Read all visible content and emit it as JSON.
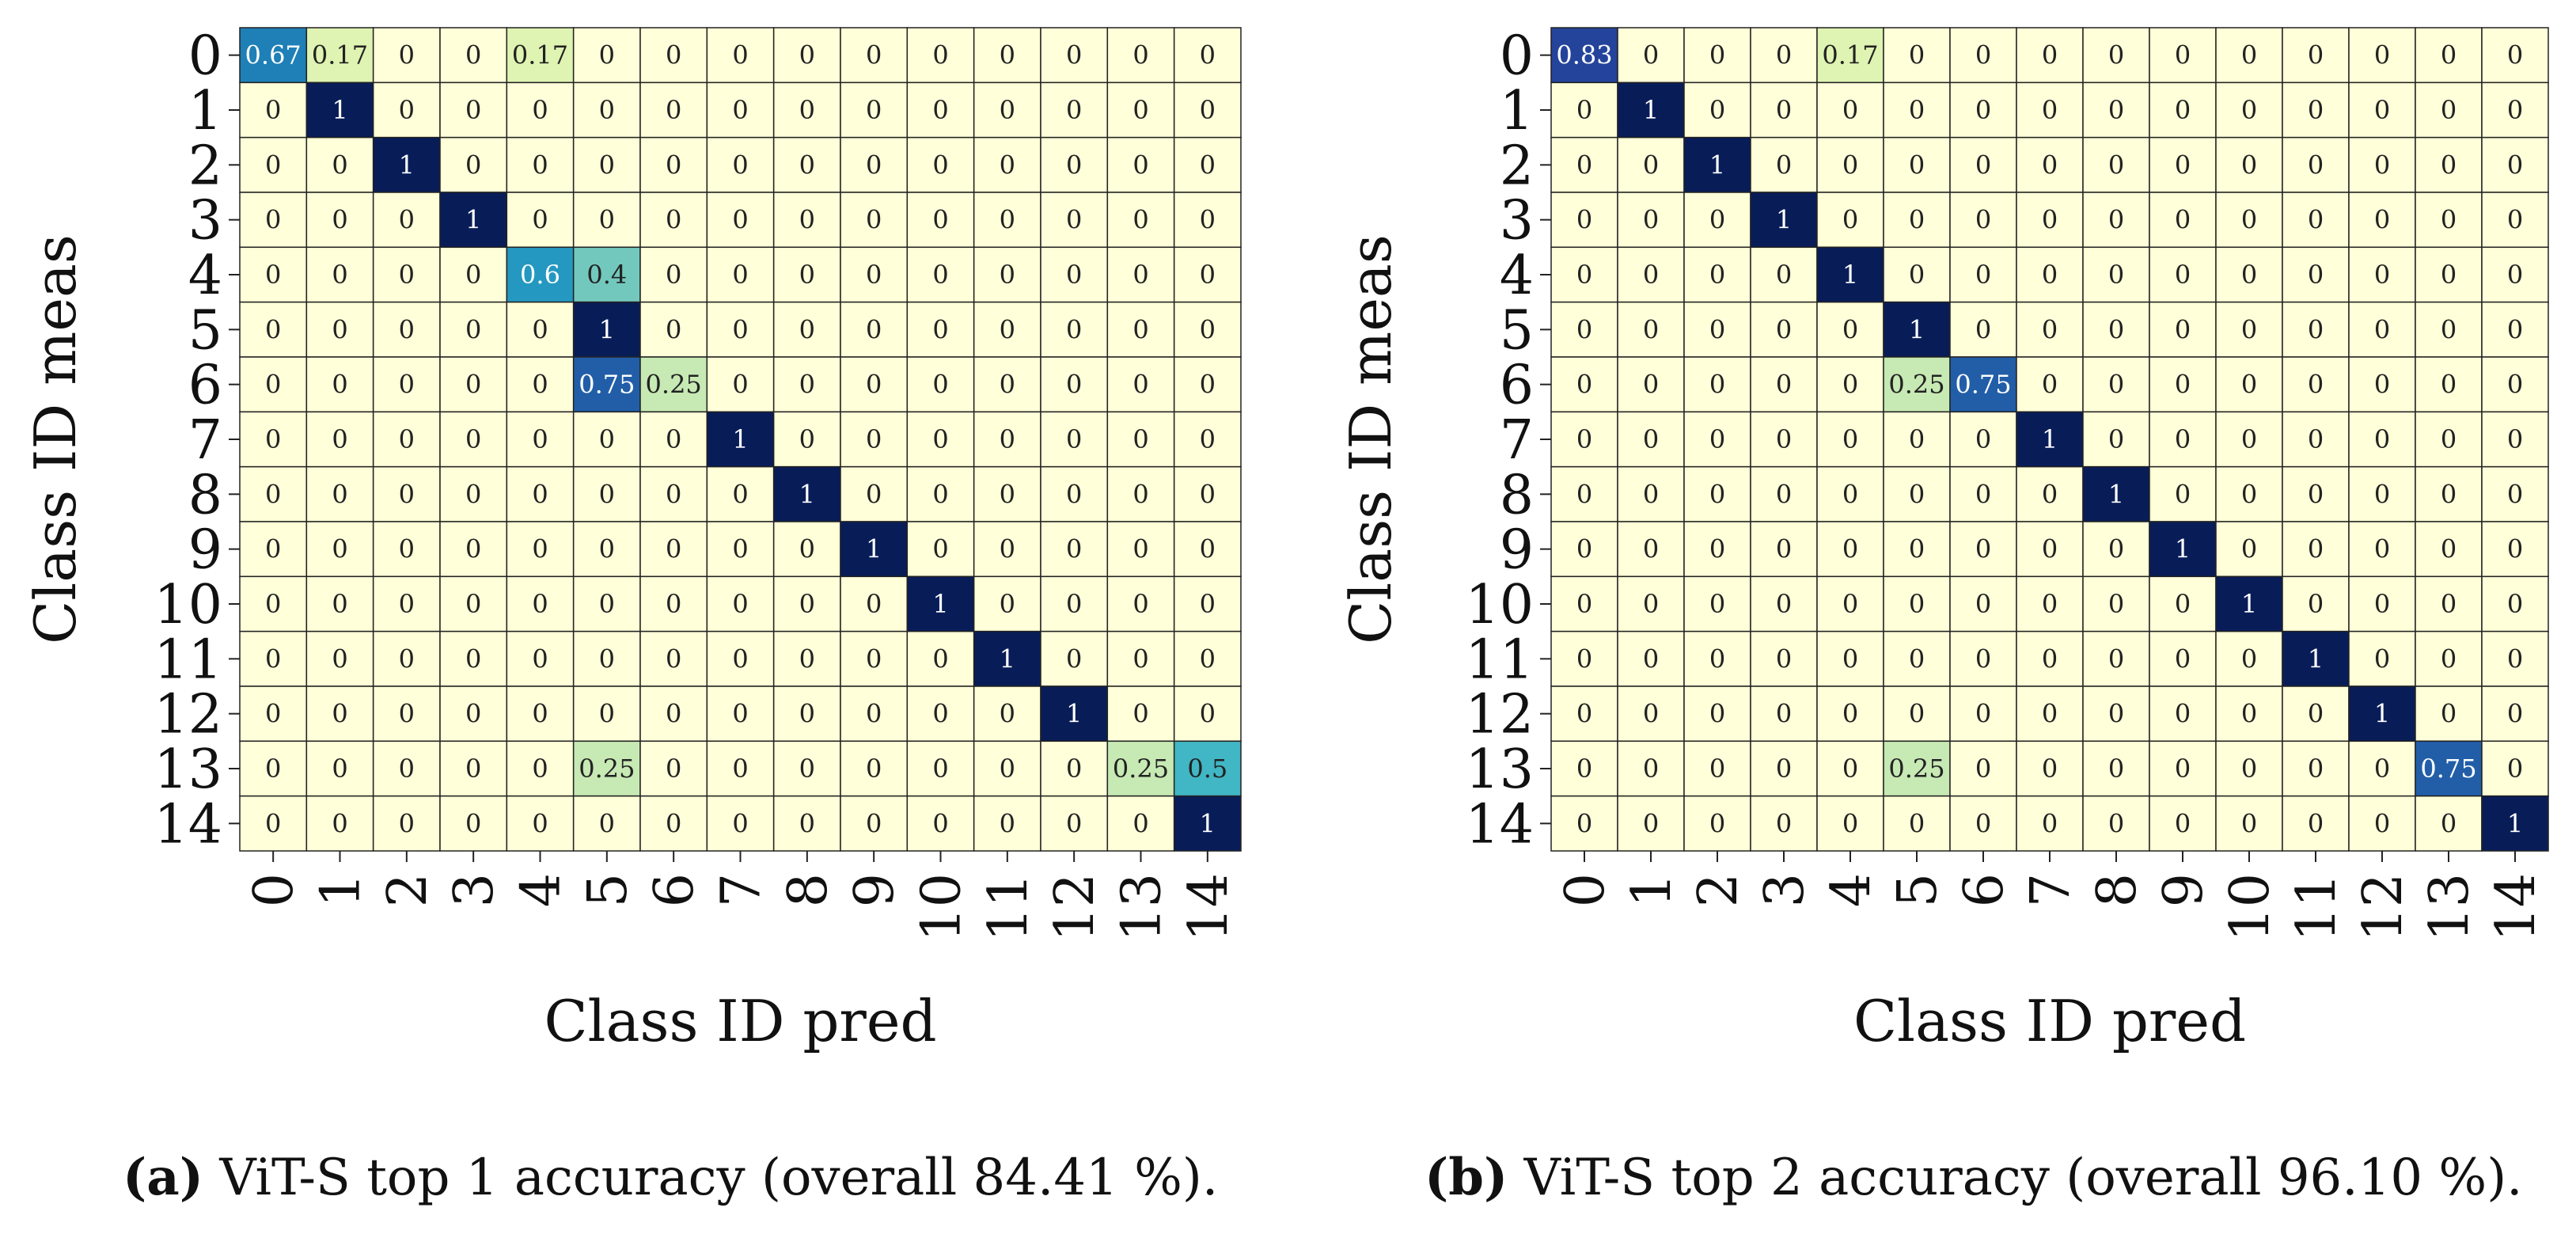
{
  "chart_data": [
    {
      "type": "heatmap",
      "panel_id": "a",
      "xlabel": "Class ID pred",
      "ylabel": "Class ID meas",
      "x_ticks": [
        "0",
        "1",
        "2",
        "3",
        "4",
        "5",
        "6",
        "7",
        "8",
        "9",
        "10",
        "11",
        "12",
        "13",
        "14"
      ],
      "y_ticks": [
        "0",
        "1",
        "2",
        "3",
        "4",
        "5",
        "6",
        "7",
        "8",
        "9",
        "10",
        "11",
        "12",
        "13",
        "14"
      ],
      "color_range": [
        0,
        1
      ],
      "colormap": "YlGnBu",
      "matrix": [
        [
          0.67,
          0.17,
          0,
          0,
          0.17,
          0,
          0,
          0,
          0,
          0,
          0,
          0,
          0,
          0,
          0
        ],
        [
          0,
          1,
          0,
          0,
          0,
          0,
          0,
          0,
          0,
          0,
          0,
          0,
          0,
          0,
          0
        ],
        [
          0,
          0,
          1,
          0,
          0,
          0,
          0,
          0,
          0,
          0,
          0,
          0,
          0,
          0,
          0
        ],
        [
          0,
          0,
          0,
          1,
          0,
          0,
          0,
          0,
          0,
          0,
          0,
          0,
          0,
          0,
          0
        ],
        [
          0,
          0,
          0,
          0,
          0.6,
          0.4,
          0,
          0,
          0,
          0,
          0,
          0,
          0,
          0,
          0
        ],
        [
          0,
          0,
          0,
          0,
          0,
          1,
          0,
          0,
          0,
          0,
          0,
          0,
          0,
          0,
          0
        ],
        [
          0,
          0,
          0,
          0,
          0,
          0.75,
          0.25,
          0,
          0,
          0,
          0,
          0,
          0,
          0,
          0
        ],
        [
          0,
          0,
          0,
          0,
          0,
          0,
          0,
          1,
          0,
          0,
          0,
          0,
          0,
          0,
          0
        ],
        [
          0,
          0,
          0,
          0,
          0,
          0,
          0,
          0,
          1,
          0,
          0,
          0,
          0,
          0,
          0
        ],
        [
          0,
          0,
          0,
          0,
          0,
          0,
          0,
          0,
          0,
          1,
          0,
          0,
          0,
          0,
          0
        ],
        [
          0,
          0,
          0,
          0,
          0,
          0,
          0,
          0,
          0,
          0,
          1,
          0,
          0,
          0,
          0
        ],
        [
          0,
          0,
          0,
          0,
          0,
          0,
          0,
          0,
          0,
          0,
          0,
          1,
          0,
          0,
          0
        ],
        [
          0,
          0,
          0,
          0,
          0,
          0,
          0,
          0,
          0,
          0,
          0,
          0,
          1,
          0,
          0
        ],
        [
          0,
          0,
          0,
          0,
          0,
          0.25,
          0,
          0,
          0,
          0,
          0,
          0,
          0,
          0.25,
          0.5
        ],
        [
          0,
          0,
          0,
          0,
          0,
          0,
          0,
          0,
          0,
          0,
          0,
          0,
          0,
          0,
          1
        ]
      ],
      "caption_label": "(a)",
      "caption_text": " ViT-S top 1 accuracy (overall 84.41 %)."
    },
    {
      "type": "heatmap",
      "panel_id": "b",
      "xlabel": "Class ID pred",
      "ylabel": "Class ID meas",
      "x_ticks": [
        "0",
        "1",
        "2",
        "3",
        "4",
        "5",
        "6",
        "7",
        "8",
        "9",
        "10",
        "11",
        "12",
        "13",
        "14"
      ],
      "y_ticks": [
        "0",
        "1",
        "2",
        "3",
        "4",
        "5",
        "6",
        "7",
        "8",
        "9",
        "10",
        "11",
        "12",
        "13",
        "14"
      ],
      "color_range": [
        0,
        1
      ],
      "colormap": "YlGnBu",
      "matrix": [
        [
          0.83,
          0,
          0,
          0,
          0.17,
          0,
          0,
          0,
          0,
          0,
          0,
          0,
          0,
          0,
          0
        ],
        [
          0,
          1,
          0,
          0,
          0,
          0,
          0,
          0,
          0,
          0,
          0,
          0,
          0,
          0,
          0
        ],
        [
          0,
          0,
          1,
          0,
          0,
          0,
          0,
          0,
          0,
          0,
          0,
          0,
          0,
          0,
          0
        ],
        [
          0,
          0,
          0,
          1,
          0,
          0,
          0,
          0,
          0,
          0,
          0,
          0,
          0,
          0,
          0
        ],
        [
          0,
          0,
          0,
          0,
          1,
          0,
          0,
          0,
          0,
          0,
          0,
          0,
          0,
          0,
          0
        ],
        [
          0,
          0,
          0,
          0,
          0,
          1,
          0,
          0,
          0,
          0,
          0,
          0,
          0,
          0,
          0
        ],
        [
          0,
          0,
          0,
          0,
          0,
          0.25,
          0.75,
          0,
          0,
          0,
          0,
          0,
          0,
          0,
          0
        ],
        [
          0,
          0,
          0,
          0,
          0,
          0,
          0,
          1,
          0,
          0,
          0,
          0,
          0,
          0,
          0
        ],
        [
          0,
          0,
          0,
          0,
          0,
          0,
          0,
          0,
          1,
          0,
          0,
          0,
          0,
          0,
          0
        ],
        [
          0,
          0,
          0,
          0,
          0,
          0,
          0,
          0,
          0,
          1,
          0,
          0,
          0,
          0,
          0
        ],
        [
          0,
          0,
          0,
          0,
          0,
          0,
          0,
          0,
          0,
          0,
          1,
          0,
          0,
          0,
          0
        ],
        [
          0,
          0,
          0,
          0,
          0,
          0,
          0,
          0,
          0,
          0,
          0,
          1,
          0,
          0,
          0
        ],
        [
          0,
          0,
          0,
          0,
          0,
          0,
          0,
          0,
          0,
          0,
          0,
          0,
          1,
          0,
          0
        ],
        [
          0,
          0,
          0,
          0,
          0,
          0.25,
          0,
          0,
          0,
          0,
          0,
          0,
          0,
          0.75,
          0
        ],
        [
          0,
          0,
          0,
          0,
          0,
          0,
          0,
          0,
          0,
          0,
          0,
          0,
          0,
          0,
          1
        ]
      ],
      "caption_label": "(b)",
      "caption_text": " ViT-S top 2 accuracy (overall 96.10 %)."
    }
  ]
}
